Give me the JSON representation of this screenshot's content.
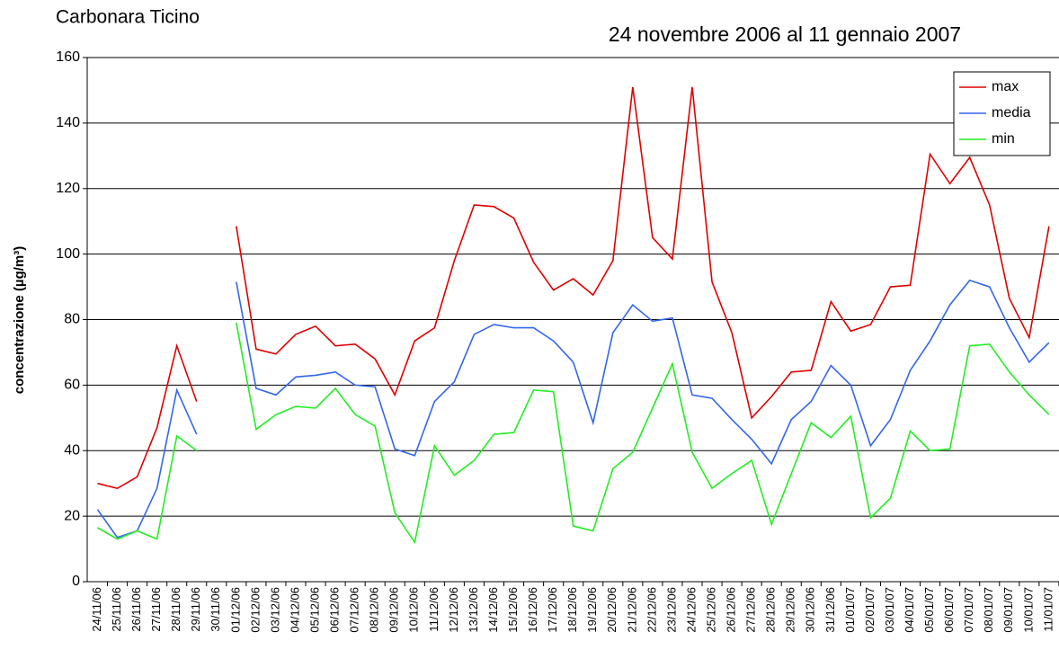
{
  "chart_data": {
    "type": "line",
    "title": "24 novembre 2006 al 11 gennaio 2007",
    "subtitle": "Carbonara Ticino",
    "y_label": "concentrazione (µg/m³)",
    "categories": [
      "24/11/06",
      "25/11/06",
      "26/11/06",
      "27/11/06",
      "28/11/06",
      "29/11/06",
      "30/11/06",
      "01/12/06",
      "02/12/06",
      "03/12/06",
      "04/12/06",
      "05/12/06",
      "06/12/06",
      "07/12/06",
      "08/12/06",
      "09/12/06",
      "10/12/06",
      "11/12/06",
      "12/12/06",
      "13/12/06",
      "14/12/06",
      "15/12/06",
      "16/12/06",
      "17/12/06",
      "18/12/06",
      "19/12/06",
      "20/12/06",
      "21/12/06",
      "22/12/06",
      "23/12/06",
      "24/12/06",
      "25/12/06",
      "26/12/06",
      "27/12/06",
      "28/12/06",
      "29/12/06",
      "30/12/06",
      "31/12/06",
      "01/01/07",
      "02/01/07",
      "03/01/07",
      "04/01/07",
      "05/01/07",
      "06/01/07",
      "07/01/07",
      "08/01/07",
      "09/01/07",
      "10/01/07",
      "11/01/07"
    ],
    "series": [
      {
        "name": "max",
        "color": "#e00000",
        "values": [
          30,
          28.5,
          32,
          47,
          72,
          55,
          null,
          108.5,
          71,
          69.5,
          75.5,
          78,
          72,
          72.5,
          68,
          57,
          73.5,
          77.5,
          98,
          115,
          114.5,
          111,
          97.5,
          89,
          92.5,
          87.5,
          98,
          151,
          105,
          98.5,
          151,
          91.5,
          76,
          50,
          56.5,
          64,
          64.5,
          85.5,
          76.5,
          78.5,
          90,
          90.5,
          130.5,
          121.5,
          129.5,
          115,
          86.5,
          74.5,
          108.5
        ]
      },
      {
        "name": "media",
        "color": "#3366ee",
        "values": [
          22,
          13.5,
          15.5,
          28.5,
          58.5,
          45,
          null,
          91.5,
          59,
          57,
          62.5,
          63,
          64,
          60,
          59.5,
          40.5,
          38.5,
          55,
          61,
          75.5,
          78.5,
          77.5,
          77.5,
          73.5,
          67,
          48.5,
          76,
          84.5,
          79.5,
          80.5,
          57,
          56,
          49.5,
          43.5,
          36,
          49.5,
          55,
          66,
          60,
          41.5,
          49.5,
          64.5,
          73.5,
          84.5,
          92,
          90,
          77.5,
          67,
          73
        ]
      },
      {
        "name": "min",
        "color": "#22ee22",
        "values": [
          16.5,
          13,
          15.5,
          13,
          44.5,
          40,
          null,
          79,
          46.5,
          51,
          53.5,
          53,
          59,
          51,
          47.5,
          21,
          12,
          41.5,
          32.5,
          37,
          45,
          45.5,
          58.5,
          58,
          17,
          15.5,
          34.5,
          39.5,
          53,
          66.5,
          39.5,
          28.5,
          33,
          37,
          17.5,
          33,
          48.5,
          44,
          50.5,
          19.5,
          25.5,
          46,
          40,
          40.5,
          72,
          72.5,
          64,
          57,
          51
        ]
      }
    ],
    "ylim": [
      0,
      160
    ],
    "yticks": [
      0,
      20,
      40,
      60,
      80,
      100,
      120,
      140,
      160
    ],
    "grid": true,
    "legend": "top-right"
  }
}
